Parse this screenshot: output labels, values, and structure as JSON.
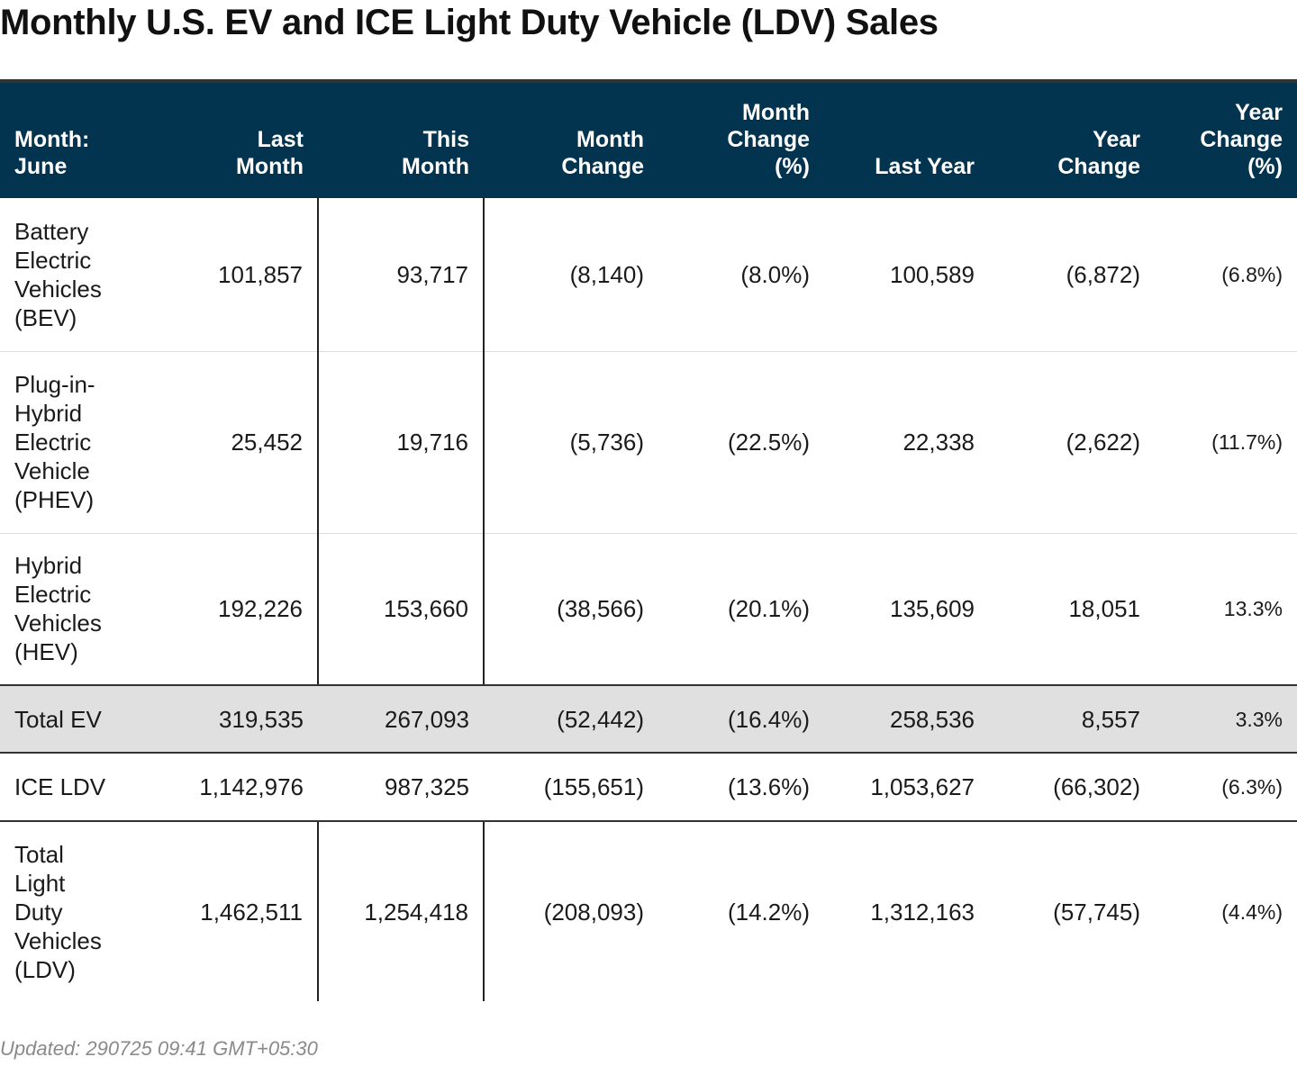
{
  "title": "Monthly U.S. EV and ICE Light Duty Vehicle (LDV) Sales",
  "footer": "Updated: 290725 09:41 GMT+05:30",
  "colors": {
    "header_bg": "#02344f",
    "total_row_bg": "#e0e0e0"
  },
  "chart_data": {
    "type": "table",
    "title": "Monthly U.S. EV and ICE Light Duty Vehicle (LDV) Sales",
    "columns": [
      "Month:\nJune",
      "Last\nMonth",
      "This\nMonth",
      "Month\nChange",
      "Month\nChange\n(%)",
      "Last Year",
      "Year\nChange",
      "Year\nChange\n(%)"
    ],
    "rows": [
      [
        "Battery\nElectric\nVehicles\n(BEV)",
        "101,857",
        "93,717",
        "(8,140)",
        "(8.0%)",
        "100,589",
        "(6,872)",
        "(6.8%)"
      ],
      [
        "Plug-in-\nHybrid\nElectric\nVehicle\n(PHEV)",
        "25,452",
        "19,716",
        "(5,736)",
        "(22.5%)",
        "22,338",
        "(2,622)",
        "(11.7%)"
      ],
      [
        "Hybrid\nElectric\nVehicles\n(HEV)",
        "192,226",
        "153,660",
        "(38,566)",
        "(20.1%)",
        "135,609",
        "18,051",
        "13.3%"
      ],
      [
        "Total EV",
        "319,535",
        "267,093",
        "(52,442)",
        "(16.4%)",
        "258,536",
        "8,557",
        "3.3%"
      ],
      [
        "ICE LDV",
        "1,142,976",
        "987,325",
        "(155,651)",
        "(13.6%)",
        "1,053,627",
        "(66,302)",
        "(6.3%)"
      ],
      [
        "Total\nLight\nDuty\nVehicles\n(LDV)",
        "1,462,511",
        "1,254,418",
        "(208,093)",
        "(14.2%)",
        "1,312,163",
        "(57,745)",
        "(4.4%)"
      ]
    ]
  }
}
